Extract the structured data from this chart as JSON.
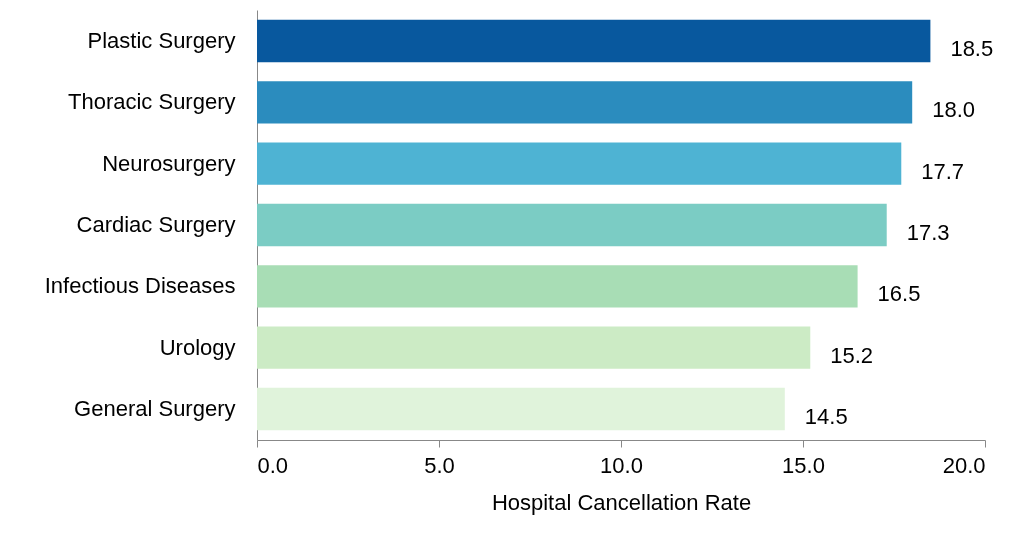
{
  "chart_data": {
    "type": "bar",
    "orientation": "horizontal",
    "xlabel": "Hospital Cancellation Rate",
    "categories": [
      "Plastic Surgery",
      "Thoracic Surgery",
      "Neurosurgery",
      "Cardiac Surgery",
      "Infectious Diseases",
      "Urology",
      "General Surgery"
    ],
    "values": [
      18.5,
      18.0,
      17.7,
      17.3,
      16.5,
      15.2,
      14.5
    ],
    "value_labels": [
      "18.5",
      "18.0",
      "17.7",
      "17.3",
      "16.5",
      "15.2",
      "14.5"
    ],
    "colors": [
      "#08589e",
      "#2b8cbe",
      "#4eb3d3",
      "#7bccc4",
      "#a8ddb5",
      "#ccebc5",
      "#e0f3db"
    ],
    "xlim": [
      0,
      20
    ],
    "xticks": [
      {
        "value": 0,
        "label": "0.0"
      },
      {
        "value": 5,
        "label": "5.0"
      },
      {
        "value": 10,
        "label": "10.0"
      },
      {
        "value": 15,
        "label": "15.0"
      },
      {
        "value": 20,
        "label": "20.0"
      }
    ],
    "grid": false
  }
}
